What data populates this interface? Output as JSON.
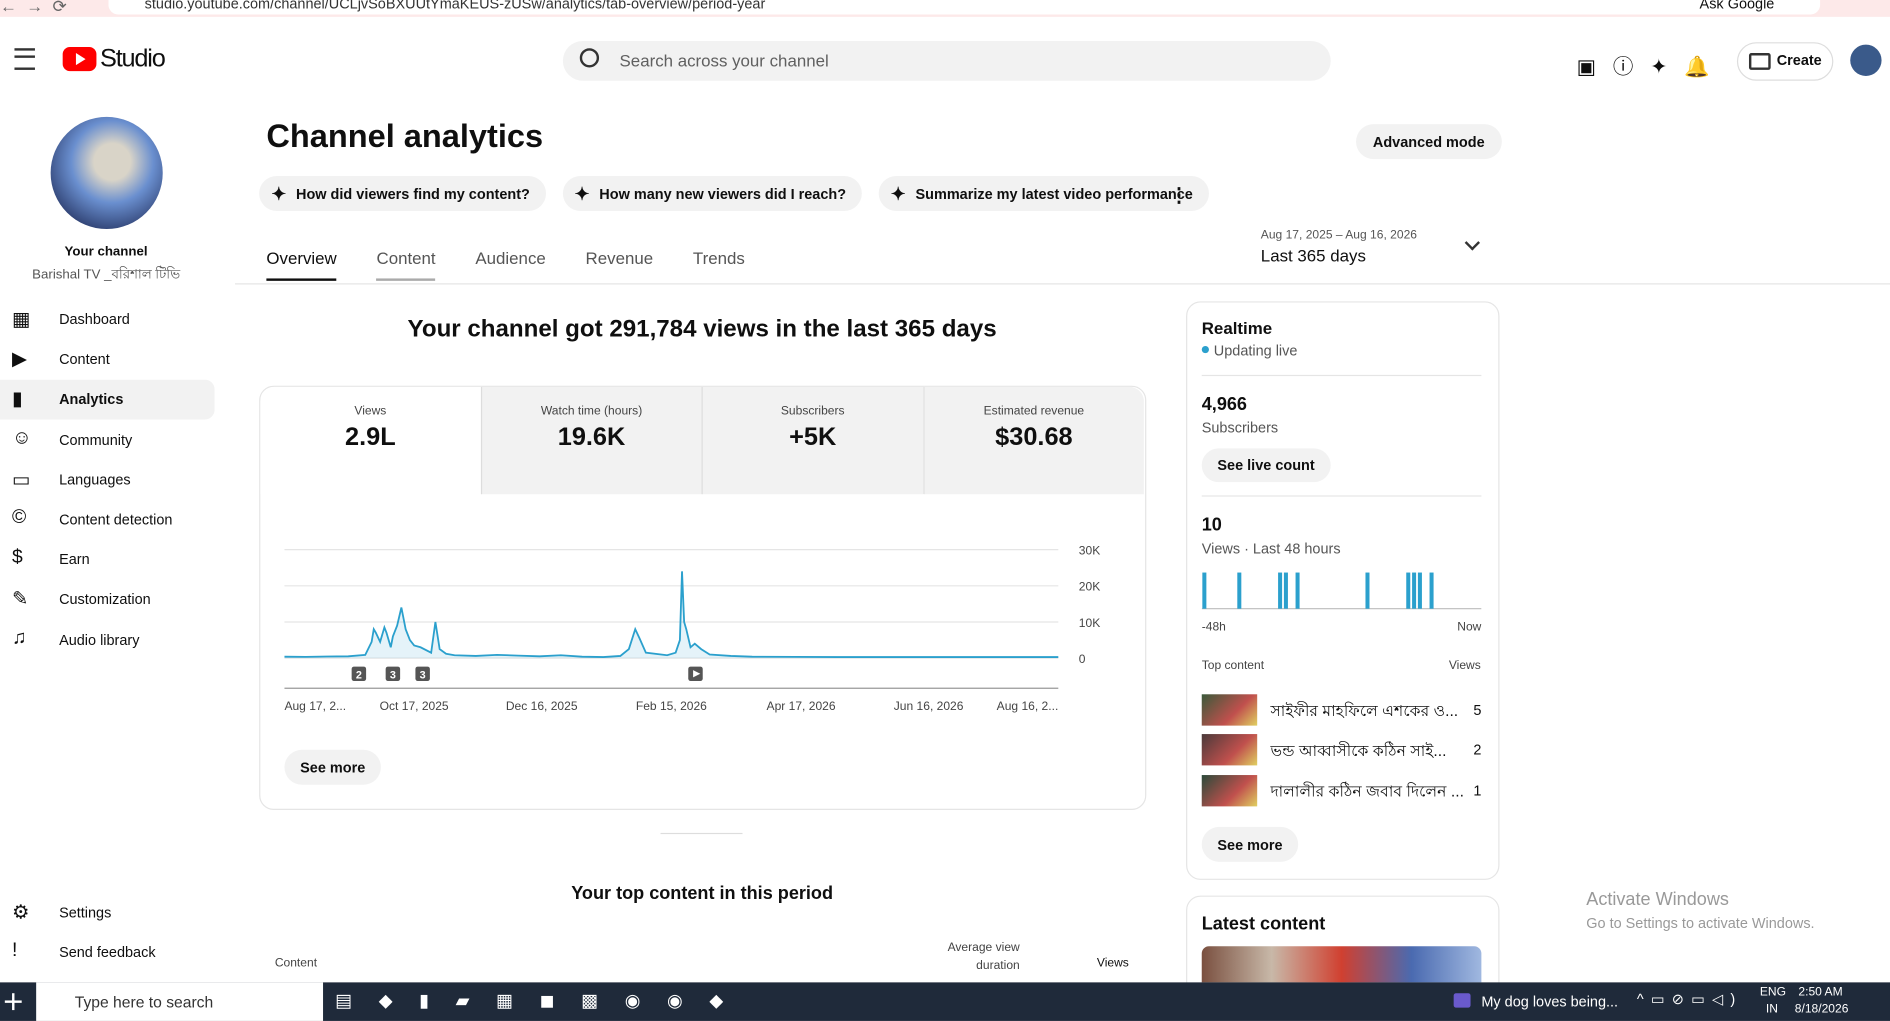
{
  "browser": {
    "url": "studio.youtube.com/channel/UCLjvSoBXUUtYmaKEUS-zUSw/analytics/tab-overview/period-year",
    "ask_google": "Ask Google"
  },
  "header": {
    "logo": "Studio",
    "search_placeholder": "Search across your channel",
    "create": "Create"
  },
  "sidebar": {
    "your_channel": "Your channel",
    "channel_name": "Barishal TV _বরিশাল টিভি",
    "nav": [
      "Dashboard",
      "Content",
      "Analytics",
      "Community",
      "Languages",
      "Content detection",
      "Earn",
      "Customization",
      "Audio library"
    ],
    "bottom": [
      "Settings",
      "Send feedback"
    ]
  },
  "main": {
    "title": "Channel analytics",
    "advanced_mode": "Advanced mode",
    "prompts": [
      "How did viewers find my content?",
      "How many new viewers did I reach?",
      "Summarize my latest video performance"
    ],
    "date_range": {
      "dates": "Aug 17, 2025 – Aug 16, 2026",
      "label": "Last 365 days"
    },
    "tabs": [
      "Overview",
      "Content",
      "Audience",
      "Revenue",
      "Trends"
    ],
    "headline": "Your channel got 291,784 views in the last 365 days",
    "metrics": [
      {
        "label": "Views",
        "value": "2.9L"
      },
      {
        "label": "Watch time (hours)",
        "value": "19.6K"
      },
      {
        "label": "Subscribers",
        "value": "+5K"
      },
      {
        "label": "Estimated revenue",
        "value": "$30.68"
      }
    ],
    "chart": {
      "type": "line",
      "color": "#2ba0cd",
      "x": [
        0,
        10,
        20,
        30,
        38,
        41,
        42,
        43,
        45,
        47,
        48,
        50,
        51,
        53,
        55,
        57,
        59,
        61,
        64,
        69,
        71,
        73,
        76,
        80,
        90,
        100,
        110,
        120,
        130,
        140,
        150,
        158,
        162,
        165,
        167,
        170,
        180,
        184,
        186,
        187,
        188,
        189,
        191,
        193,
        196,
        200,
        210,
        220,
        240,
        260,
        280,
        300,
        320,
        340,
        364
      ],
      "values": [
        400,
        350,
        450,
        500,
        900,
        4500,
        8000,
        7000,
        4500,
        8500,
        7000,
        3000,
        6000,
        9000,
        14000,
        8000,
        5000,
        3500,
        3000,
        1500,
        10000,
        2500,
        1200,
        800,
        600,
        900,
        700,
        500,
        800,
        400,
        300,
        600,
        2500,
        8000,
        5500,
        1500,
        800,
        1500,
        5000,
        24000,
        10000,
        8000,
        3000,
        4000,
        2500,
        1000,
        600,
        400,
        350,
        300,
        300,
        300,
        300,
        300,
        300
      ],
      "xlim": [
        0,
        364
      ],
      "ylim": [
        0,
        30000
      ],
      "xticks": [
        {
          "value": 0,
          "label": "Aug 17, 2..."
        },
        {
          "value": 61,
          "label": "Oct 17, 2025"
        },
        {
          "value": 121,
          "label": "Dec 16, 2025"
        },
        {
          "value": 182,
          "label": "Feb 15, 2026"
        },
        {
          "value": 243,
          "label": "Apr 17, 2026"
        },
        {
          "value": 303,
          "label": "Jun 16, 2026"
        },
        {
          "value": 364,
          "label": "Aug 16, 2..."
        }
      ],
      "yticks": [
        {
          "value": 30000,
          "label": "30K"
        },
        {
          "value": 20000,
          "label": "20K"
        },
        {
          "value": 10000,
          "label": "10K"
        },
        0
      ],
      "annotations": [
        {
          "label": "2",
          "x": 35
        },
        {
          "label": "3",
          "x": 51
        },
        {
          "label": "3",
          "x": 65
        }
      ],
      "grid": true
    },
    "see_more": "See more",
    "top_content_title": "Your top content in this period",
    "table_headers": [
      "Content",
      "Average view duration",
      "Views"
    ]
  },
  "realtime": {
    "title": "Realtime",
    "status": "Updating live",
    "subscribers": "4,966",
    "subscribers_label": "Subscribers",
    "see_live_count": "See live count",
    "views": "10",
    "views_label": "Views · Last 48 hours",
    "bars": {
      "type": "bar",
      "color": "#2ba0cd",
      "values": [
        1,
        0,
        0,
        0,
        0,
        0,
        1,
        0,
        0,
        0,
        0,
        0,
        0,
        1,
        1,
        0,
        1,
        0,
        0,
        0,
        0,
        0,
        0,
        0,
        0,
        0,
        0,
        0,
        1,
        0,
        0,
        0,
        0,
        0,
        0,
        1,
        1,
        1,
        0,
        1,
        0,
        0,
        0,
        0,
        0,
        0,
        0,
        0
      ],
      "ylim": [
        0,
        1
      ],
      "start_label": "-48h",
      "end_label": "Now"
    },
    "top_content_label": "Top content",
    "views_header": "Views",
    "top_content": [
      {
        "title": "সাইফীর মাহফিলে এশকের ও...",
        "views": "5"
      },
      {
        "title": "ভন্ড আব্বাসীকে কঠিন সাই...",
        "views": "2"
      },
      {
        "title": "দালালীর কঠিন জবাব দিলেন ...",
        "views": "1"
      }
    ],
    "see_more": "See more",
    "latest_content": "Latest content"
  },
  "watermark": {
    "title": "Activate Windows",
    "subtitle": "Go to Settings to activate Windows."
  },
  "taskbar": {
    "search": "Type here to search",
    "notification": "My dog loves being...",
    "lang": "ENG",
    "region": "IN",
    "time": "2:50 AM",
    "date": "8/18/2026"
  }
}
